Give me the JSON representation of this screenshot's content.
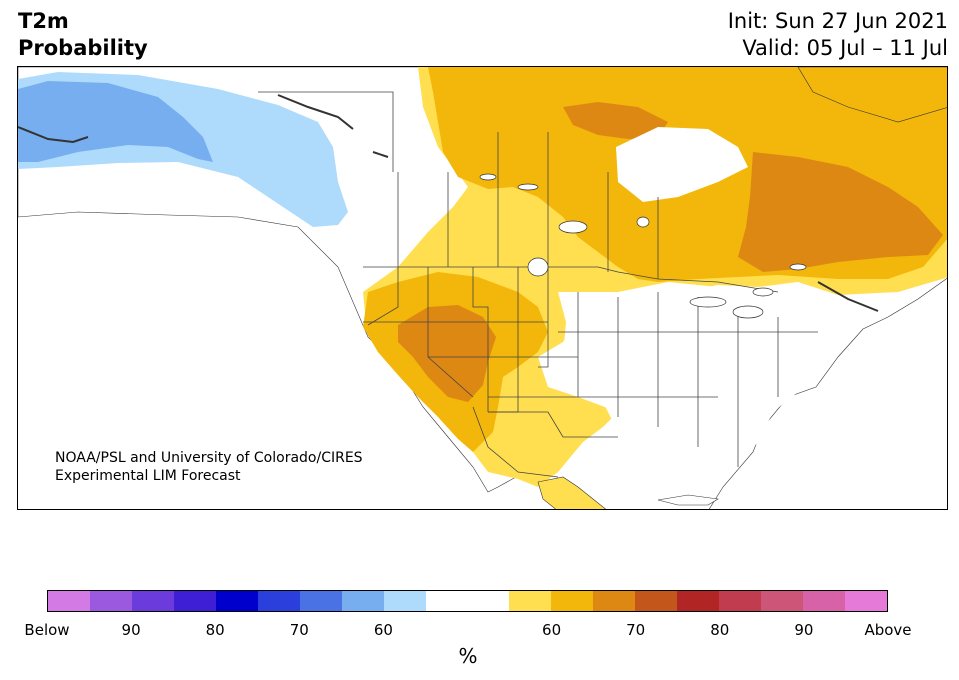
{
  "header": {
    "title_line1": "T2m",
    "title_line2": "Probability",
    "init": "Init: Sun 27 Jun 2021",
    "valid": "Valid: 05 Jul – 11 Jul"
  },
  "credit": {
    "line1": "NOAA/PSL and University of Colorado/CIRES",
    "line2": "Experimental LIM Forecast"
  },
  "colorbar": {
    "colors": [
      "#d37ae5",
      "#9b59e0",
      "#6b3bdb",
      "#3f1fd6",
      "#0000cd",
      "#2a3fdc",
      "#4a72e4",
      "#76aef0",
      "#aedbfb",
      "#ffffff",
      "#ffffff",
      "#ffdf4f",
      "#f2b70a",
      "#de8814",
      "#c3561a",
      "#b12624",
      "#c13c4f",
      "#cd5678",
      "#d862a8",
      "#e57ad8"
    ],
    "labels": [
      "Below",
      "90",
      "80",
      "70",
      "60",
      "",
      "60",
      "70",
      "80",
      "90",
      "Above"
    ],
    "unit": "%"
  },
  "map_colors": {
    "land": "#ffffff",
    "water_border": "#000000",
    "blue_60": "#aedbfb",
    "blue_70": "#76aef0",
    "yellow_50": "#ffdf4f",
    "yellow_60": "#f2b70a",
    "orange_70": "#de8814"
  }
}
